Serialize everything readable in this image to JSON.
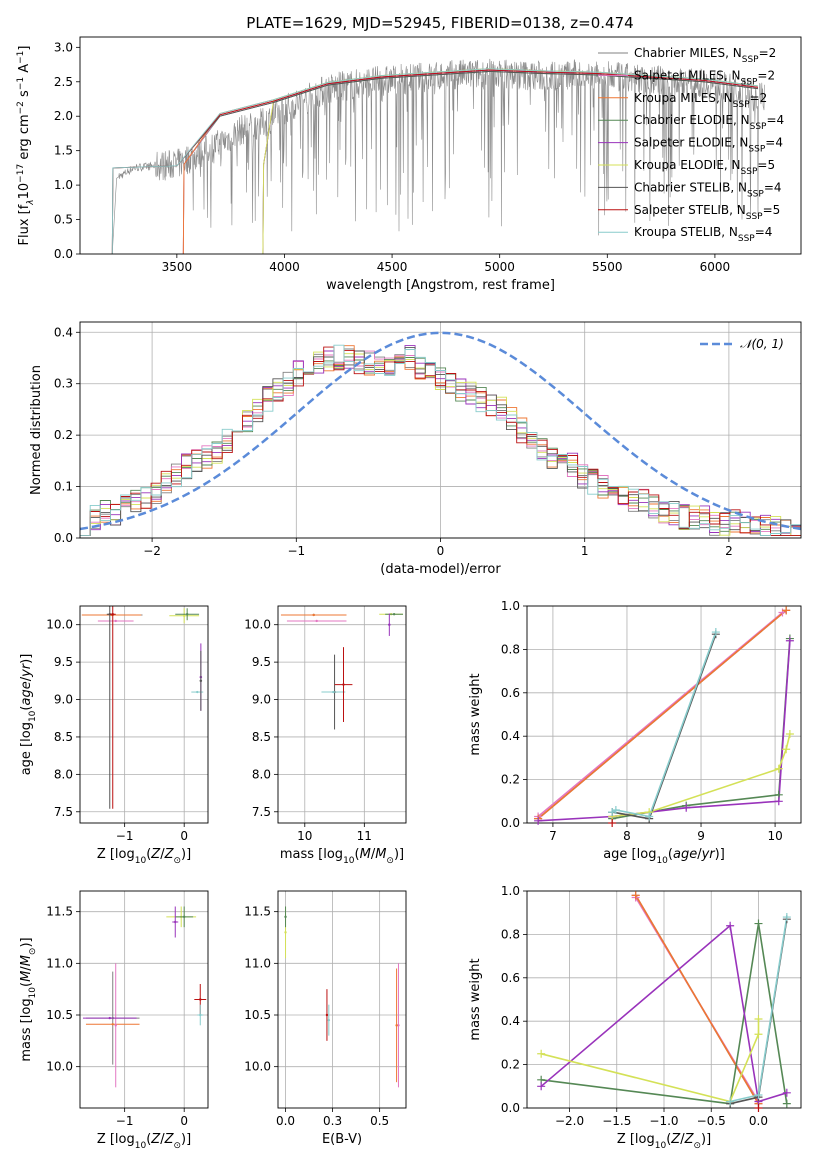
{
  "figure": {
    "title": "PLATE=1629, MJD=52945, FIBERID=0138, z=0.474"
  },
  "colors": {
    "chabrier_miles": "#808080",
    "salpeter_miles": "#e377c2",
    "kroupa_miles": "#ee7733",
    "chabrier_elodie": "#558855",
    "salpeter_elodie": "#9933bb",
    "kroupa_elodie": "#d4e157",
    "chabrier_stelib": "#555555",
    "salpeter_stelib": "#bb1111",
    "kroupa_stelib": "#88cccc",
    "normal": "#5b8bd9"
  },
  "legend_models": [
    {
      "key": "chabrier_miles",
      "label": "Chabrier MILES, N",
      "nssp": "2"
    },
    {
      "key": "salpeter_miles",
      "label": "Salpeter MILES, N",
      "nssp": "2"
    },
    {
      "key": "kroupa_miles",
      "label": "Kroupa MILES, N",
      "nssp": "2"
    },
    {
      "key": "chabrier_elodie",
      "label": "Chabrier ELODIE, N",
      "nssp": "4"
    },
    {
      "key": "salpeter_elodie",
      "label": "Salpeter ELODIE, N",
      "nssp": "4"
    },
    {
      "key": "kroupa_elodie",
      "label": "Kroupa ELODIE, N",
      "nssp": "5"
    },
    {
      "key": "chabrier_stelib",
      "label": "Chabrier STELIB, N",
      "nssp": "4"
    },
    {
      "key": "salpeter_stelib",
      "label": "Salpeter STELIB, N",
      "nssp": "5"
    },
    {
      "key": "kroupa_stelib",
      "label": "Kroupa STELIB, N",
      "nssp": "4"
    }
  ],
  "chart_data": [
    {
      "id": "spectrum",
      "type": "line",
      "xlabel": "wavelength [Angstrom, rest frame]",
      "ylabel": "Flux [f",
      "xlim": [
        3050,
        6400
      ],
      "ylim": [
        0,
        3.15
      ],
      "xticks": [
        3500,
        4000,
        4500,
        5000,
        5500,
        6000
      ],
      "yticks": [
        0.0,
        0.5,
        1.0,
        1.5,
        2.0,
        2.5,
        3.0
      ],
      "grid": false,
      "legend": "top-right",
      "data_envelope": {
        "x": [
          3200,
          3220,
          3300,
          3400,
          3500,
          3600,
          3700,
          3800,
          3900,
          4000,
          4200,
          4400,
          4600,
          4800,
          5000,
          5200,
          5400,
          5600,
          5800,
          6000,
          6200
        ],
        "y": [
          0.0,
          1.1,
          1.25,
          1.28,
          1.3,
          1.45,
          1.6,
          1.8,
          1.9,
          2.1,
          2.4,
          2.5,
          2.55,
          2.6,
          2.62,
          2.58,
          2.6,
          2.55,
          2.5,
          2.45,
          2.3
        ]
      },
      "models": [
        {
          "key": "chabrier_miles",
          "start": 3530,
          "y": [
            2.0,
            2.2,
            2.45,
            2.55,
            2.6,
            2.65,
            2.62,
            2.6,
            2.55,
            2.5,
            2.4
          ]
        },
        {
          "key": "salpeter_miles",
          "start": 3530,
          "y": [
            2.0,
            2.2,
            2.45,
            2.55,
            2.6,
            2.65,
            2.62,
            2.6,
            2.55,
            2.5,
            2.4
          ]
        },
        {
          "key": "kroupa_miles",
          "start": 3530,
          "y": [
            2.0,
            2.2,
            2.45,
            2.55,
            2.6,
            2.65,
            2.62,
            2.6,
            2.55,
            2.5,
            2.4
          ]
        },
        {
          "key": "chabrier_elodie",
          "start": 3900,
          "y": [
            2.0,
            2.2,
            2.45,
            2.55,
            2.6,
            2.65,
            2.62,
            2.6,
            2.55,
            2.5,
            2.4
          ]
        },
        {
          "key": "salpeter_elodie",
          "start": 3900,
          "y": [
            2.0,
            2.2,
            2.45,
            2.55,
            2.6,
            2.65,
            2.62,
            2.6,
            2.55,
            2.5,
            2.4
          ]
        },
        {
          "key": "kroupa_elodie",
          "start": 3900,
          "y": [
            2.0,
            2.2,
            2.45,
            2.55,
            2.6,
            2.65,
            2.62,
            2.6,
            2.55,
            2.5,
            2.4
          ]
        },
        {
          "key": "chabrier_stelib",
          "start": 3200,
          "y": [
            2.0,
            2.2,
            2.45,
            2.55,
            2.6,
            2.65,
            2.62,
            2.6,
            2.55,
            2.5,
            2.4
          ]
        },
        {
          "key": "salpeter_stelib",
          "start": 3200,
          "y": [
            2.0,
            2.2,
            2.45,
            2.55,
            2.6,
            2.65,
            2.62,
            2.6,
            2.55,
            2.5,
            2.4
          ]
        },
        {
          "key": "kroupa_stelib",
          "start": 3200,
          "y": [
            2.0,
            2.2,
            2.45,
            2.55,
            2.6,
            2.65,
            2.62,
            2.6,
            2.55,
            2.5,
            2.4
          ]
        }
      ]
    },
    {
      "id": "residuals",
      "type": "line",
      "xlabel": "(data-model)/error",
      "ylabel": "Normed distribution",
      "xlim": [
        -2.5,
        2.5
      ],
      "ylim": [
        0,
        0.42
      ],
      "xticks": [
        -2,
        -1,
        0,
        1,
        2
      ],
      "yticks": [
        0.0,
        0.1,
        0.2,
        0.3,
        0.4
      ],
      "grid": true,
      "legend": "top-right",
      "normal_label": "𝒩(0, 1)",
      "bin_width": 0.1,
      "hist_base": [
        0.03,
        0.04,
        0.05,
        0.05,
        0.06,
        0.07,
        0.08,
        0.09,
        0.11,
        0.12,
        0.14,
        0.15,
        0.16,
        0.17,
        0.19,
        0.21,
        0.23,
        0.25,
        0.27,
        0.29,
        0.3,
        0.32,
        0.33,
        0.34,
        0.35,
        0.35,
        0.35,
        0.34,
        0.34,
        0.34,
        0.34,
        0.35,
        0.35,
        0.33,
        0.32,
        0.31,
        0.3,
        0.29,
        0.28,
        0.27,
        0.26,
        0.25,
        0.23,
        0.21,
        0.19,
        0.17,
        0.16,
        0.15,
        0.14,
        0.12,
        0.11,
        0.1,
        0.09,
        0.08,
        0.07,
        0.07,
        0.06,
        0.05,
        0.05,
        0.04,
        0.04,
        0.04,
        0.03,
        0.03,
        0.03,
        0.03,
        0.02,
        0.02,
        0.02,
        0.02,
        0.02
      ]
    },
    {
      "id": "age_vs_Z",
      "type": "scatter",
      "xlabel": "Z [log",
      "ylabel": "age  [log",
      "xlim": [
        -1.75,
        0.4
      ],
      "ylim": [
        7.35,
        10.25
      ],
      "xticks": [
        -1,
        0
      ],
      "yticks": [
        7.5,
        8.0,
        8.5,
        9.0,
        9.5,
        10.0
      ],
      "grid": true,
      "points": [
        {
          "key": "chabrier_miles",
          "x": -1.2,
          "y": 10.13,
          "xerr": 0.5,
          "yerr": 0.0
        },
        {
          "key": "kroupa_miles",
          "x": -1.22,
          "y": 10.13,
          "xerr": 0.5,
          "yerr": 0.0
        },
        {
          "key": "salpeter_miles",
          "x": -1.15,
          "y": 10.05,
          "xerr": 0.3,
          "yerr": 0.0
        },
        {
          "key": "chabrier_stelib",
          "x": -1.25,
          "y": 10.14,
          "xerr": 0.05,
          "yerr": 2.6
        },
        {
          "key": "salpeter_stelib",
          "x": -1.2,
          "y": 10.14,
          "xerr": 0.05,
          "yerr": 2.6
        },
        {
          "key": "kroupa_elodie",
          "x": 0.0,
          "y": 10.12,
          "xerr": 0.25,
          "yerr": 0.1
        },
        {
          "key": "chabrier_elodie",
          "x": 0.05,
          "y": 10.14,
          "xerr": 0.2,
          "yerr": 0.08
        },
        {
          "key": "salpeter_elodie",
          "x": 0.28,
          "y": 9.3,
          "xerr": 0.02,
          "yerr": 0.45
        },
        {
          "key": "kroupa_stelib",
          "x": 0.22,
          "y": 9.1,
          "xerr": 0.1,
          "yerr": 0.0
        },
        {
          "key": "chabrier_stelib",
          "x": 0.28,
          "y": 9.25,
          "xerr": 0.02,
          "yerr": 0.4
        }
      ]
    },
    {
      "id": "age_vs_mass",
      "type": "scatter",
      "xlabel": "mass [log",
      "ylabel": "",
      "xlim": [
        9.55,
        11.7
      ],
      "ylim": [
        7.35,
        10.25
      ],
      "xticks": [
        10,
        11
      ],
      "yticks": [
        7.5,
        8.0,
        8.5,
        9.0,
        9.5,
        10.0
      ],
      "grid": true,
      "points": [
        {
          "key": "chabrier_miles",
          "x": 10.15,
          "y": 10.13,
          "xerr": 0.55,
          "yerr": 0.0
        },
        {
          "key": "kroupa_miles",
          "x": 10.15,
          "y": 10.13,
          "xerr": 0.55,
          "yerr": 0.0
        },
        {
          "key": "salpeter_miles",
          "x": 10.2,
          "y": 10.05,
          "xerr": 0.5,
          "yerr": 0.0
        },
        {
          "key": "kroupa_elodie",
          "x": 11.45,
          "y": 10.14,
          "xerr": 0.2,
          "yerr": 0.0
        },
        {
          "key": "chabrier_elodie",
          "x": 11.5,
          "y": 10.14,
          "xerr": 0.15,
          "yerr": 0.0
        },
        {
          "key": "salpeter_elodie",
          "x": 11.42,
          "y": 10.0,
          "xerr": 0.02,
          "yerr": 0.15
        },
        {
          "key": "chabrier_stelib",
          "x": 10.5,
          "y": 9.1,
          "xerr": 0.05,
          "yerr": 0.5
        },
        {
          "key": "kroupa_stelib",
          "x": 10.48,
          "y": 9.1,
          "xerr": 0.2,
          "yerr": 0.0
        },
        {
          "key": "salpeter_stelib",
          "x": 10.65,
          "y": 9.2,
          "xerr": 0.15,
          "yerr": 0.5
        }
      ]
    },
    {
      "id": "weight_vs_age",
      "type": "line",
      "xlabel": "age  [log",
      "ylabel": "mass weight",
      "xlim": [
        6.65,
        10.35
      ],
      "ylim": [
        0,
        1.0
      ],
      "xticks": [
        7,
        8,
        9,
        10
      ],
      "yticks": [
        0.0,
        0.2,
        0.4,
        0.6,
        0.8,
        1.0
      ],
      "grid": true,
      "series": [
        {
          "key": "chabrier_miles",
          "x": [
            6.8,
            10.15
          ],
          "y": [
            0.02,
            0.98
          ]
        },
        {
          "key": "salpeter_miles",
          "x": [
            6.8,
            10.1
          ],
          "y": [
            0.03,
            0.97
          ]
        },
        {
          "key": "kroupa_miles",
          "x": [
            6.8,
            10.15
          ],
          "y": [
            0.02,
            0.98
          ]
        },
        {
          "key": "chabrier_elodie",
          "x": [
            7.8,
            8.8,
            10.05,
            10.2
          ],
          "y": [
            0.02,
            0.08,
            0.13,
            0.85
          ]
        },
        {
          "key": "salpeter_elodie",
          "x": [
            6.8,
            7.8,
            8.8,
            10.05,
            10.2
          ],
          "y": [
            0.01,
            0.03,
            0.07,
            0.1,
            0.84
          ]
        },
        {
          "key": "kroupa_elodie",
          "x": [
            7.8,
            8.3,
            10.05,
            10.15,
            10.2
          ],
          "y": [
            0.03,
            0.05,
            0.25,
            0.34,
            0.41
          ]
        },
        {
          "key": "chabrier_stelib",
          "x": [
            7.8,
            8.3,
            9.2
          ],
          "y": [
            0.05,
            0.02,
            0.87
          ]
        },
        {
          "key": "salpeter_stelib",
          "x": [
            7.8
          ],
          "y": [
            0.0
          ]
        },
        {
          "key": "kroupa_stelib",
          "x": [
            7.8,
            7.85,
            8.3,
            9.2
          ],
          "y": [
            0.05,
            0.06,
            0.03,
            0.88
          ]
        }
      ]
    },
    {
      "id": "mass_vs_Z",
      "type": "scatter",
      "xlabel": "Z [log",
      "ylabel": "mass [log",
      "xlim": [
        -1.75,
        0.4
      ],
      "ylim": [
        9.6,
        11.7
      ],
      "xticks": [
        -1,
        0
      ],
      "yticks": [
        10.0,
        10.5,
        11.0,
        11.5
      ],
      "grid": true,
      "points": [
        {
          "key": "chabrier_miles",
          "x": -1.2,
          "y": 10.47,
          "xerr": 0.45,
          "yerr": 0.45
        },
        {
          "key": "kroupa_miles",
          "x": -1.2,
          "y": 10.41,
          "xerr": 0.45,
          "yerr": 0.0
        },
        {
          "key": "salpeter_miles",
          "x": -1.15,
          "y": 10.4,
          "xerr": 0.0,
          "yerr": 0.6
        },
        {
          "key": "salpeter_elodie",
          "x": -1.25,
          "y": 10.47,
          "xerr": 0.45,
          "yerr": 0.0
        },
        {
          "key": "kroupa_elodie",
          "x": -0.05,
          "y": 11.45,
          "xerr": 0.25,
          "yerr": 0.1
        },
        {
          "key": "chabrier_elodie",
          "x": 0.0,
          "y": 11.45,
          "xerr": 0.15,
          "yerr": 0.1
        },
        {
          "key": "salpeter_elodie",
          "x": -0.15,
          "y": 11.4,
          "xerr": 0.05,
          "yerr": 0.15
        },
        {
          "key": "salpeter_stelib",
          "x": 0.27,
          "y": 10.65,
          "xerr": 0.1,
          "yerr": 0.15
        },
        {
          "key": "kroupa_stelib",
          "x": 0.27,
          "y": 10.5,
          "xerr": 0.05,
          "yerr": 0.1
        }
      ]
    },
    {
      "id": "mass_vs_ebv",
      "type": "scatter",
      "xlabel": "E(B-V)",
      "ylabel": "",
      "xlim": [
        -0.04,
        0.64
      ],
      "ylim": [
        9.6,
        11.7
      ],
      "xticks": [
        0.0,
        0.25,
        0.5
      ],
      "yticks": [
        10.0,
        10.5,
        11.0,
        11.5
      ],
      "grid": true,
      "points": [
        {
          "key": "kroupa_elodie",
          "x": 0.0,
          "y": 11.3,
          "xerr": 0.0,
          "yerr": 0.25
        },
        {
          "key": "chabrier_elodie",
          "x": 0.0,
          "y": 11.45,
          "xerr": 0.0,
          "yerr": 0.1
        },
        {
          "key": "salpeter_stelib",
          "x": 0.22,
          "y": 10.5,
          "xerr": 0.0,
          "yerr": 0.25
        },
        {
          "key": "kroupa_stelib",
          "x": 0.23,
          "y": 10.45,
          "xerr": 0.0,
          "yerr": 0.15
        },
        {
          "key": "salpeter_miles",
          "x": 0.6,
          "y": 10.4,
          "xerr": 0.0,
          "yerr": 0.6
        },
        {
          "key": "kroupa_miles",
          "x": 0.59,
          "y": 10.4,
          "xerr": 0.0,
          "yerr": 0.55
        }
      ]
    },
    {
      "id": "weight_vs_Z",
      "type": "line",
      "xlabel": "Z [log",
      "ylabel": "mass weight",
      "xlim": [
        -2.45,
        0.45
      ],
      "ylim": [
        0,
        1.0
      ],
      "xticks": [
        -2.0,
        -1.5,
        -1.0,
        -0.5,
        0.0
      ],
      "yticks": [
        0.0,
        0.2,
        0.4,
        0.6,
        0.8,
        1.0
      ],
      "grid": true,
      "series": [
        {
          "key": "chabrier_miles",
          "x": [
            -1.3,
            0.0
          ],
          "y": [
            0.98,
            0.02
          ]
        },
        {
          "key": "salpeter_miles",
          "x": [
            -1.3,
            0.0
          ],
          "y": [
            0.97,
            0.03
          ]
        },
        {
          "key": "kroupa_miles",
          "x": [
            -1.3,
            0.0
          ],
          "y": [
            0.98,
            0.02
          ]
        },
        {
          "key": "chabrier_elodie",
          "x": [
            -2.3,
            -0.3,
            0.0,
            0.3
          ],
          "y": [
            0.13,
            0.02,
            0.85,
            0.02
          ]
        },
        {
          "key": "salpeter_elodie",
          "x": [
            -2.3,
            -0.3,
            0.0,
            0.3
          ],
          "y": [
            0.1,
            0.84,
            0.03,
            0.07
          ]
        },
        {
          "key": "kroupa_elodie",
          "x": [
            -2.3,
            -0.3,
            0.0,
            0.0
          ],
          "y": [
            0.25,
            0.03,
            0.34,
            0.41
          ]
        },
        {
          "key": "chabrier_stelib",
          "x": [
            -0.3,
            0.0,
            0.3
          ],
          "y": [
            0.02,
            0.05,
            0.87
          ]
        },
        {
          "key": "salpeter_stelib",
          "x": [
            0.0
          ],
          "y": [
            0.0
          ]
        },
        {
          "key": "kroupa_stelib",
          "x": [
            -0.3,
            0.0,
            0.3
          ],
          "y": [
            0.03,
            0.06,
            0.88
          ]
        }
      ]
    }
  ]
}
